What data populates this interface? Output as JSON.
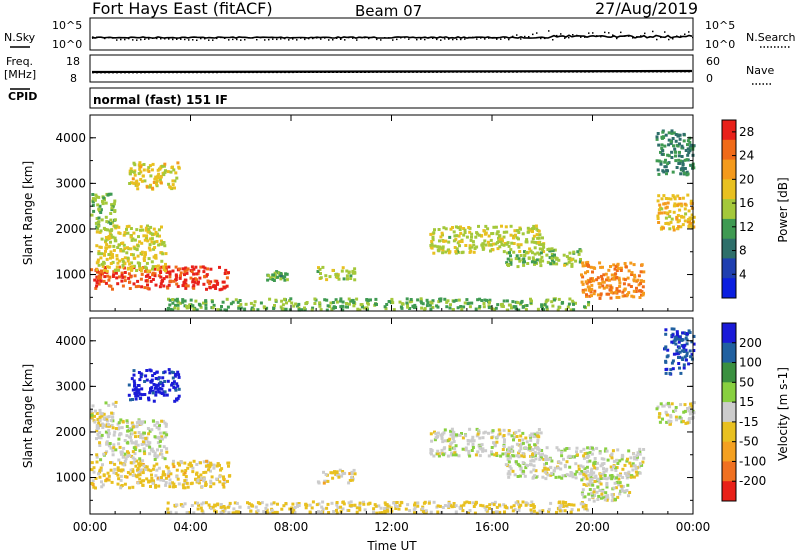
{
  "header": {
    "station": "Fort Hays East (fitACF)",
    "beam": "Beam 07",
    "date": "27/Aug/2019"
  },
  "top_panels": {
    "nsky_label": "N.Sky",
    "nsearch_label": "N.Search",
    "freq_label": "Freq.",
    "freq_unit": "[MHz]",
    "nave_label": "Nave",
    "cpid_label": "CPID",
    "cpid_text": "normal (fast) 151 IF",
    "noise_ticks": [
      "10^5",
      "10^0"
    ],
    "freq_ticks": [
      "18",
      "8"
    ],
    "nave_ticks": [
      "60",
      "0"
    ]
  },
  "colors": {
    "power_scale": [
      "#0b1fe0",
      "#1f3fb0",
      "#2e6f6a",
      "#3f9a52",
      "#a4c83a",
      "#e8c020",
      "#f49a1c",
      "#f06a18",
      "#e8201a"
    ],
    "velocity_scale": [
      "#1a1ad8",
      "#2060a0",
      "#3a9040",
      "#88d040",
      "#cccccc",
      "#e8c020",
      "#f4a020",
      "#f07020",
      "#e82018"
    ]
  },
  "chart_data": [
    {
      "type": "heatmap",
      "name": "power",
      "xlabel": "",
      "ylabel": "Slant Range [km]",
      "x_ticks": [
        "00:00",
        "04:00",
        "08:00",
        "12:00",
        "16:00",
        "20:00",
        "00:00"
      ],
      "xlim": [
        0,
        24
      ],
      "y_ticks": [
        "1000",
        "2000",
        "3000",
        "4000"
      ],
      "ylim": [
        200,
        4500
      ],
      "colorbar_label": "Power [dB]",
      "colorbar_ticks": [
        "4",
        "8",
        "12",
        "16",
        "20",
        "24",
        "28"
      ],
      "colorbar_range": [
        0,
        30
      ],
      "patches": [
        {
          "t0": 0.0,
          "t1": 5.5,
          "r0": 700,
          "r1": 1200,
          "v": 27
        },
        {
          "t0": 0.2,
          "t1": 3.0,
          "r0": 1100,
          "r1": 2100,
          "v": 17
        },
        {
          "t0": 0.0,
          "t1": 1.0,
          "r0": 2000,
          "r1": 2800,
          "v": 14
        },
        {
          "t0": 1.5,
          "t1": 3.5,
          "r0": 2900,
          "r1": 3500,
          "v": 18
        },
        {
          "t0": 3.0,
          "t1": 19.8,
          "r0": 250,
          "r1": 500,
          "v": 13
        },
        {
          "t0": 9.0,
          "t1": 10.5,
          "r0": 900,
          "r1": 1200,
          "v": 15
        },
        {
          "t0": 7.0,
          "t1": 7.8,
          "r0": 900,
          "r1": 1100,
          "v": 12
        },
        {
          "t0": 13.5,
          "t1": 18.0,
          "r0": 1500,
          "r1": 2100,
          "v": 16
        },
        {
          "t0": 16.5,
          "t1": 19.5,
          "r0": 1200,
          "r1": 1600,
          "v": 14
        },
        {
          "t0": 19.5,
          "t1": 22.0,
          "r0": 500,
          "r1": 1300,
          "v": 23
        },
        {
          "t0": 22.5,
          "t1": 24.0,
          "r0": 2000,
          "r1": 2800,
          "v": 19
        },
        {
          "t0": 22.5,
          "t1": 24.0,
          "r0": 3200,
          "r1": 4200,
          "v": 10
        }
      ]
    },
    {
      "type": "heatmap",
      "name": "velocity",
      "xlabel": "Time UT",
      "ylabel": "Slant Range [km]",
      "x_ticks": [
        "00:00",
        "04:00",
        "08:00",
        "12:00",
        "16:00",
        "20:00",
        "00:00"
      ],
      "xlim": [
        0,
        24
      ],
      "y_ticks": [
        "1000",
        "2000",
        "3000",
        "4000"
      ],
      "ylim": [
        200,
        4500
      ],
      "colorbar_label": "Velocity [m s-1]",
      "colorbar_ticks": [
        "200",
        "100",
        "50",
        "15",
        "-15",
        "-50",
        "-100",
        "-200"
      ],
      "colorbar_range": [
        -250,
        250
      ],
      "patches": [
        {
          "t0": 0.0,
          "t1": 5.5,
          "r0": 800,
          "r1": 1400,
          "v": -45
        },
        {
          "t0": 0.2,
          "t1": 3.0,
          "r0": 1400,
          "r1": 2300,
          "v": 0
        },
        {
          "t0": 0.0,
          "t1": 1.0,
          "r0": 2100,
          "r1": 2700,
          "v": -10
        },
        {
          "t0": 1.5,
          "t1": 3.5,
          "r0": 2700,
          "r1": 3400,
          "v": 220
        },
        {
          "t0": 3.0,
          "t1": 19.8,
          "r0": 250,
          "r1": 500,
          "v": -35
        },
        {
          "t0": 9.0,
          "t1": 10.5,
          "r0": 900,
          "r1": 1200,
          "v": -40
        },
        {
          "t0": 13.5,
          "t1": 18.0,
          "r0": 1500,
          "r1": 2100,
          "v": 0
        },
        {
          "t0": 16.5,
          "t1": 22.0,
          "r0": 1000,
          "r1": 1700,
          "v": 2
        },
        {
          "t0": 19.5,
          "t1": 21.5,
          "r0": 500,
          "r1": 1100,
          "v": 5
        },
        {
          "t0": 22.5,
          "t1": 24.0,
          "r0": 2200,
          "r1": 2700,
          "v": -5
        },
        {
          "t0": 22.8,
          "t1": 24.0,
          "r0": 3300,
          "r1": 4300,
          "v": 190
        }
      ]
    }
  ]
}
